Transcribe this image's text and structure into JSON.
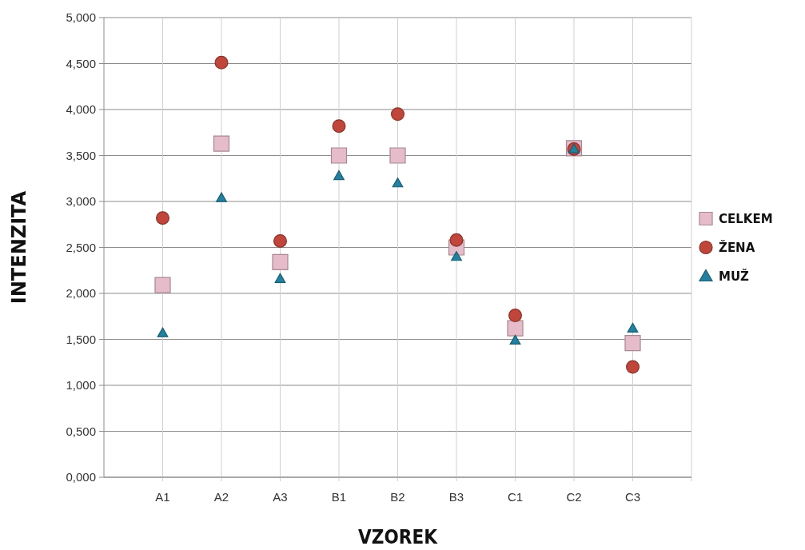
{
  "chart_data": {
    "type": "scatter",
    "xlabel": "VZOREK",
    "ylabel": "INTENZITA",
    "categories": [
      "A1",
      "A2",
      "A3",
      "B1",
      "B2",
      "B3",
      "C1",
      "C2",
      "C3"
    ],
    "series": [
      {
        "name": "CELKEM",
        "color": "#e6bccb",
        "marker": "square",
        "values": [
          2.09,
          3.63,
          2.34,
          3.5,
          3.5,
          2.5,
          1.62,
          3.58,
          1.46
        ]
      },
      {
        "name": "ŽENA",
        "color": "#c0453a",
        "marker": "circle",
        "values": [
          2.82,
          4.51,
          2.57,
          3.82,
          3.95,
          2.58,
          1.76,
          3.57,
          1.2
        ]
      },
      {
        "name": "MUŽ",
        "color": "#23809f",
        "marker": "triangle",
        "values": [
          1.57,
          3.04,
          2.16,
          3.28,
          3.2,
          2.4,
          1.49,
          3.57,
          1.62
        ]
      }
    ],
    "ylim": [
      0,
      5
    ],
    "yticks": [
      {
        "value": 0,
        "label": "0,000"
      },
      {
        "value": 0.5,
        "label": "0,500"
      },
      {
        "value": 1,
        "label": "1,000"
      },
      {
        "value": 1.5,
        "label": "1,500"
      },
      {
        "value": 2,
        "label": "2,000"
      },
      {
        "value": 2.5,
        "label": "2,500"
      },
      {
        "value": 3,
        "label": "3,000"
      },
      {
        "value": 3.5,
        "label": "3,500"
      },
      {
        "value": 4,
        "label": "4,000"
      },
      {
        "value": 4.5,
        "label": "4,500"
      },
      {
        "value": 5,
        "label": "5,000"
      }
    ],
    "grid": true,
    "legend": "right"
  }
}
